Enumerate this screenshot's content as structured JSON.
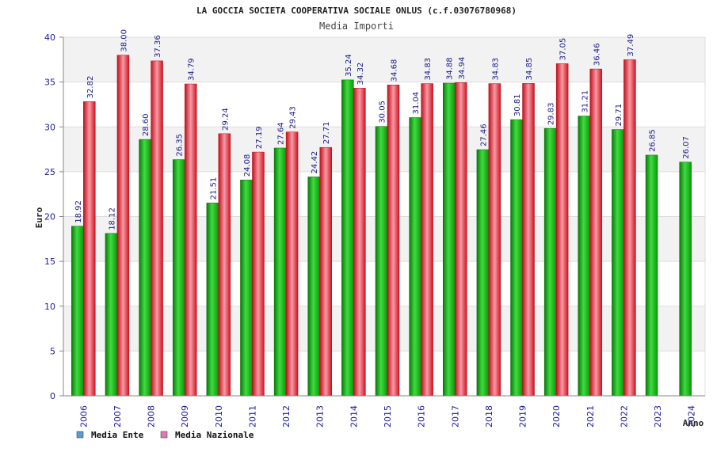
{
  "chart_data": {
    "type": "bar",
    "title": "LA GOCCIA SOCIETA COOPERATIVA SOCIALE ONLUS (c.f.03076780968)",
    "subtitle": "Media Importi",
    "ylabel": "Euro",
    "xlabel": "Anno",
    "ylim": [
      0,
      40
    ],
    "yticks": [
      "0",
      "5",
      "10",
      "15",
      "20",
      "25",
      "30",
      "35",
      "40"
    ],
    "categories": [
      "2006",
      "2007",
      "2008",
      "2009",
      "2010",
      "2011",
      "2012",
      "2013",
      "2014",
      "2015",
      "2016",
      "2017",
      "2018",
      "2019",
      "2020",
      "2021",
      "2022",
      "2023",
      "2024"
    ],
    "series": [
      {
        "name": "Media Ente",
        "color": "#10b010",
        "legend_color": "#5b9bd5",
        "values": [
          18.92,
          18.12,
          28.6,
          26.35,
          21.51,
          24.08,
          27.64,
          24.42,
          35.24,
          30.05,
          31.04,
          34.88,
          27.46,
          30.81,
          29.83,
          31.21,
          29.71,
          26.85,
          26.07
        ],
        "labels": [
          "18.92",
          "18.12",
          "28.60",
          "26.35",
          "21.51",
          "24.08",
          "27.64",
          "24.42",
          "35.24",
          "30.05",
          "31.04",
          "34.88",
          "27.46",
          "30.81",
          "29.83",
          "31.21",
          "29.71",
          "26.85",
          "26.07"
        ]
      },
      {
        "name": "Media Nazionale",
        "color": "#e0202a",
        "legend_color": "#d97bb2",
        "values": [
          32.82,
          38.0,
          37.36,
          34.79,
          29.24,
          27.19,
          29.43,
          27.71,
          34.32,
          34.68,
          34.83,
          34.94,
          34.83,
          34.85,
          37.05,
          36.46,
          37.49,
          null,
          null
        ],
        "labels": [
          "32.82",
          "38.00",
          "37.36",
          "34.79",
          "29.24",
          "27.19",
          "29.43",
          "27.71",
          "34.32",
          "34.68",
          "34.83",
          "34.94",
          "34.83",
          "34.85",
          "37.05",
          "36.46",
          "37.49",
          null,
          null
        ]
      }
    ],
    "grid": true,
    "legend": "bottom-left"
  }
}
